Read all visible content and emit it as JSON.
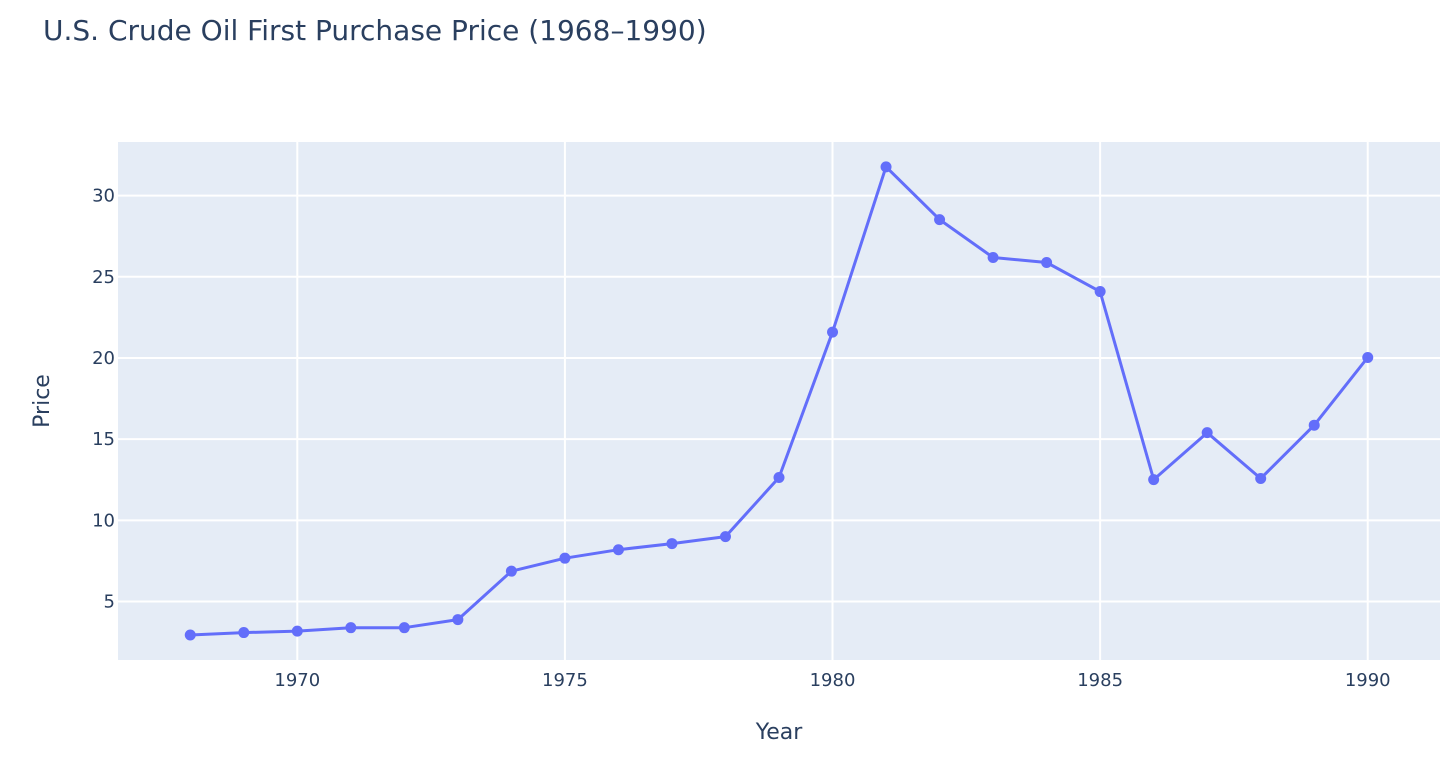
{
  "chart_data": {
    "type": "line",
    "title": "U.S. Crude Oil First Purchase Price (1968–1990)",
    "xlabel": "Year",
    "ylabel": "Price",
    "x": [
      1968,
      1969,
      1970,
      1971,
      1972,
      1973,
      1974,
      1975,
      1976,
      1977,
      1978,
      1979,
      1980,
      1981,
      1982,
      1983,
      1984,
      1985,
      1986,
      1987,
      1988,
      1989,
      1990
    ],
    "series": [
      {
        "values": [
          2.94,
          3.09,
          3.18,
          3.39,
          3.39,
          3.89,
          6.87,
          7.67,
          8.19,
          8.57,
          9.0,
          12.64,
          21.59,
          31.77,
          28.52,
          26.19,
          25.88,
          24.09,
          12.51,
          15.4,
          12.58,
          15.86,
          20.03
        ],
        "color": "#636efa"
      }
    ],
    "xlim": [
      1966.65,
      1991.35
    ],
    "ylim": [
      1.4,
      33.3
    ],
    "xticks": [
      "1970",
      "1975",
      "1980",
      "1985",
      "1990"
    ],
    "yticks": [
      "5",
      "10",
      "15",
      "20",
      "25",
      "30"
    ],
    "grid": true,
    "plot_background": "#e5ecf6",
    "gridline_color": "#ffffff",
    "text_color": "#2a3f5f"
  }
}
